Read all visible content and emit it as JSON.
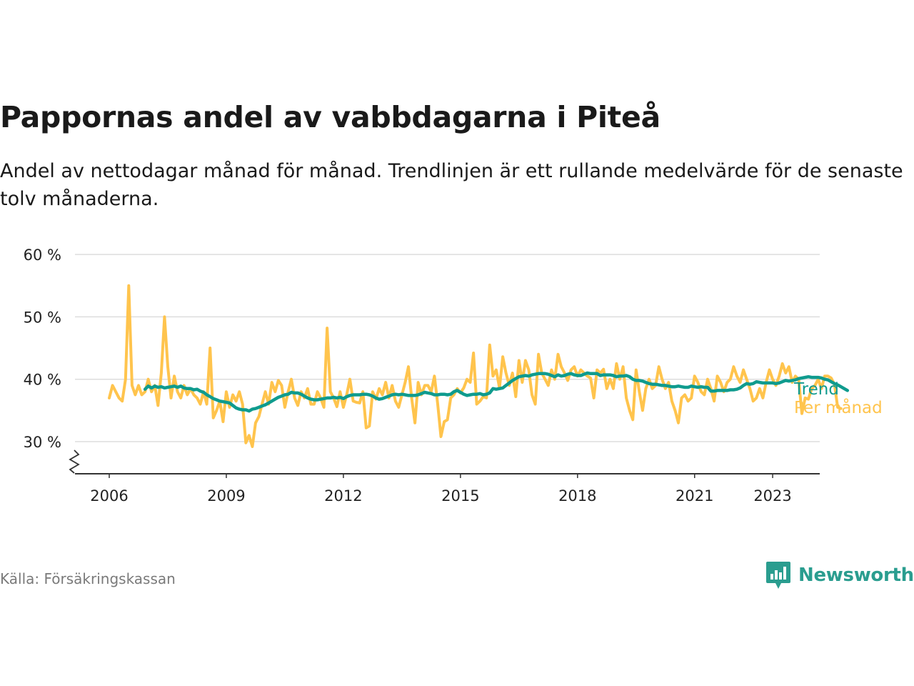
{
  "title": "Pappornas andel av vabbdagarna i Piteå",
  "subtitle": "Andel av nettodagar månad för månad. Trendlinjen är ett rullande medelvärde för de senaste tolv månaderna.",
  "source": "Källa: Försäkringskassan",
  "brand": {
    "name": "Newsworthy",
    "icon": "newsworthy-logo-icon",
    "color": "#2a9d8f"
  },
  "colors": {
    "monthly": "#ffc44d",
    "trend": "#0f9b8e",
    "grid": "#dddddd",
    "axis": "#333333",
    "text": "#222222"
  },
  "chart_data": {
    "type": "line",
    "x_ticks": [
      "2006",
      "2009",
      "2012",
      "2015",
      "2018",
      "2021",
      "2023"
    ],
    "y_ticks": [
      "30 %",
      "40 %",
      "50 %",
      "60 %"
    ],
    "ylim": [
      25,
      60
    ],
    "grid": true,
    "axis_break": true,
    "series": [
      {
        "name": "Per månad",
        "color": "#ffc44d",
        "start": "2006-01",
        "values": [
          37,
          39,
          38,
          37,
          36.5,
          40,
          55,
          39,
          37.5,
          39,
          37.5,
          38,
          40,
          38,
          39,
          35.8,
          41,
          50,
          42,
          37,
          40.5,
          38,
          37,
          39,
          37.5,
          38.5,
          37.5,
          37,
          36,
          38,
          36,
          45,
          33.8,
          35,
          36.5,
          33.2,
          38,
          35.5,
          37.5,
          36.5,
          38,
          36,
          29.8,
          31,
          29.2,
          33,
          34,
          36,
          38,
          36,
          39.5,
          38,
          39.8,
          39,
          35.5,
          38,
          40,
          37,
          35.8,
          38,
          37,
          38.5,
          36,
          36,
          38,
          37,
          35.5,
          48.2,
          38,
          37,
          35.6,
          38,
          35.5,
          37.5,
          40,
          36.5,
          36.3,
          36.2,
          38,
          32.2,
          32.5,
          38,
          36.8,
          38.5,
          37.5,
          39.5,
          37,
          39,
          36.5,
          35.5,
          37.5,
          39.5,
          42,
          37,
          33,
          39.5,
          37.5,
          39,
          39,
          38,
          40.5,
          36,
          30.8,
          33.2,
          33.5,
          37,
          37.5,
          38.5,
          37.8,
          38.6,
          40,
          39.5,
          44.2,
          36,
          36.5,
          37.2,
          37,
          45.5,
          40.5,
          41.5,
          38.6,
          43.6,
          41,
          39,
          41,
          37.2,
          43,
          39.5,
          43,
          41.5,
          37.5,
          36,
          44,
          41,
          40,
          39,
          41.5,
          40,
          44,
          42,
          41,
          39.8,
          41.5,
          42,
          40.5,
          41.5,
          41,
          40.5,
          40.2,
          37,
          41.5,
          41,
          41.6,
          38.5,
          40,
          38.5,
          42.5,
          40,
          42,
          37,
          35,
          33.5,
          41.5,
          38,
          35,
          38.5,
          40,
          38.5,
          39,
          42,
          40,
          38.5,
          39.5,
          36.5,
          35,
          33,
          37,
          37.5,
          36.5,
          37,
          40.5,
          39.5,
          38,
          37.5,
          40,
          38.5,
          36.5,
          40.5,
          39.5,
          38,
          39.5,
          40,
          42,
          40.5,
          39.5,
          41.5,
          40,
          38.5,
          36.5,
          37,
          38.5,
          37,
          39.5,
          41.5,
          40,
          39,
          40.5,
          42.5,
          41,
          42,
          39.5,
          40.5,
          40,
          34.5,
          37,
          36.8,
          38.5,
          39,
          40,
          38.5,
          40.5,
          40.5,
          40.2,
          39.2,
          35.5,
          35.3
        ]
      },
      {
        "name": "Trend",
        "color": "#0f9b8e",
        "start": "2006-12",
        "values": [
          38.4,
          38.9,
          38.6,
          38.9,
          38.7,
          38.8,
          38.6,
          38.7,
          38.8,
          38.9,
          38.7,
          38.9,
          38.6,
          38.5,
          38.5,
          38.3,
          38.4,
          38.1,
          37.9,
          37.5,
          37.2,
          36.9,
          36.7,
          36.5,
          36.4,
          36.3,
          36.2,
          35.8,
          35.4,
          35.2,
          35.1,
          35.1,
          34.9,
          35.2,
          35.3,
          35.5,
          35.7,
          35.9,
          36.2,
          36.5,
          36.8,
          37.1,
          37.3,
          37.5,
          37.6,
          37.9,
          37.8,
          37.8,
          37.6,
          37.3,
          37.0,
          36.8,
          36.7,
          36.7,
          36.8,
          36.9,
          37.0,
          37.0,
          37.1,
          37.0,
          37.1,
          36.9,
          37.2,
          37.4,
          37.5,
          37.5,
          37.5,
          37.6,
          37.6,
          37.5,
          37.3,
          37.0,
          36.8,
          36.9,
          37.1,
          37.3,
          37.5,
          37.6,
          37.5,
          37.6,
          37.5,
          37.4,
          37.4,
          37.4,
          37.5,
          37.7,
          37.9,
          37.8,
          37.7,
          37.5,
          37.5,
          37.6,
          37.6,
          37.5,
          37.6,
          38.0,
          38.2,
          37.9,
          37.6,
          37.4,
          37.5,
          37.6,
          37.6,
          37.7,
          37.5,
          37.6,
          37.8,
          38.5,
          38.4,
          38.5,
          38.6,
          39.0,
          39.4,
          39.8,
          40.1,
          40.4,
          40.5,
          40.6,
          40.5,
          40.7,
          40.8,
          40.9,
          40.9,
          40.9,
          40.8,
          40.6,
          40.4,
          40.7,
          40.5,
          40.6,
          40.8,
          40.9,
          40.7,
          40.6,
          40.6,
          40.8,
          41.0,
          40.9,
          40.9,
          40.9,
          40.6,
          40.7,
          40.7,
          40.7,
          40.6,
          40.4,
          40.5,
          40.5,
          40.6,
          40.4,
          40.0,
          39.8,
          39.8,
          39.7,
          39.5,
          39.3,
          39.2,
          39.2,
          39.1,
          39.0,
          39.0,
          38.9,
          38.8,
          38.8,
          38.9,
          38.8,
          38.7,
          38.7,
          38.9,
          38.8,
          38.7,
          38.8,
          38.7,
          38.7,
          38.1,
          38.1,
          38.2,
          38.2,
          38.2,
          38.2,
          38.3,
          38.3,
          38.4,
          38.6,
          39.0,
          39.3,
          39.2,
          39.3,
          39.6,
          39.5,
          39.4,
          39.4,
          39.4,
          39.4,
          39.3,
          39.4,
          39.6,
          39.8,
          39.7,
          39.8,
          39.9,
          40.1,
          40.2,
          40.3,
          40.4,
          40.3,
          40.3,
          40.3,
          40.2,
          40.0,
          39.9,
          39.6,
          39.3,
          39.1,
          38.8,
          38.5,
          38.2
        ]
      }
    ]
  }
}
